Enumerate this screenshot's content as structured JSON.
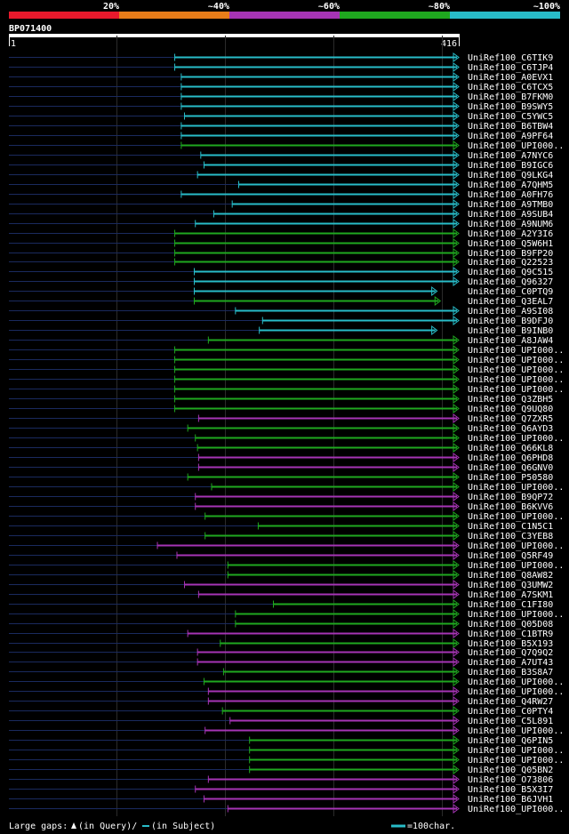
{
  "query_id": "BP071400",
  "query_start": "1",
  "query_end": "416",
  "legend": {
    "ticks": [
      "20%",
      "~40%",
      "~60%",
      "~80%",
      "~100%"
    ],
    "colors": [
      "#e8192c",
      "#e87d19",
      "#a634b5",
      "#1fa81f",
      "#28bcc8"
    ]
  },
  "footer": {
    "large_gaps_label": "Large gaps:",
    "query_gap_text": "(in Query)/",
    "subject_gap_text": "(in Subject)",
    "scale_text": "=100char."
  },
  "chart_data": {
    "type": "alignment-overview",
    "query_length": 416,
    "hits": [
      {
        "name": "UniRef100_C6TIK9",
        "start": 154,
        "end": 416,
        "identity_class": "~100%"
      },
      {
        "name": "UniRef100_C6TJP4",
        "start": 154,
        "end": 416,
        "identity_class": "~100%"
      },
      {
        "name": "UniRef100_A0EVX1",
        "start": 160,
        "end": 416,
        "identity_class": "~100%"
      },
      {
        "name": "UniRef100_C6TCX5",
        "start": 160,
        "end": 416,
        "identity_class": "~100%"
      },
      {
        "name": "UniRef100_B7FKM0",
        "start": 160,
        "end": 416,
        "identity_class": "~100%"
      },
      {
        "name": "UniRef100_B9SWY5",
        "start": 160,
        "end": 416,
        "identity_class": "~100%"
      },
      {
        "name": "UniRef100_C5YWC5",
        "start": 163,
        "end": 416,
        "identity_class": "~100%"
      },
      {
        "name": "UniRef100_B6TBW4",
        "start": 160,
        "end": 416,
        "identity_class": "~100%"
      },
      {
        "name": "UniRef100_A9PF64",
        "start": 160,
        "end": 416,
        "identity_class": "~100%"
      },
      {
        "name": "UniRef100_UPI000..",
        "start": 160,
        "end": 416,
        "identity_class": "~80%"
      },
      {
        "name": "UniRef100_A7NYC6",
        "start": 178,
        "end": 416,
        "identity_class": "~100%"
      },
      {
        "name": "UniRef100_B9IGC6",
        "start": 181,
        "end": 416,
        "identity_class": "~100%"
      },
      {
        "name": "UniRef100_Q9LKG4",
        "start": 175,
        "end": 416,
        "identity_class": "~100%"
      },
      {
        "name": "UniRef100_A7QHM5",
        "start": 213,
        "end": 416,
        "identity_class": "~100%"
      },
      {
        "name": "UniRef100_A0FH76",
        "start": 160,
        "end": 416,
        "identity_class": "~100%"
      },
      {
        "name": "UniRef100_A9TMB0",
        "start": 207,
        "end": 416,
        "identity_class": "~100%"
      },
      {
        "name": "UniRef100_A9SUB4",
        "start": 190,
        "end": 416,
        "identity_class": "~100%"
      },
      {
        "name": "UniRef100_A9NUM6",
        "start": 173,
        "end": 416,
        "identity_class": "~100%"
      },
      {
        "name": "UniRef100_A2Y3I6",
        "start": 154,
        "end": 416,
        "identity_class": "~80%"
      },
      {
        "name": "UniRef100_Q5W6H1",
        "start": 154,
        "end": 416,
        "identity_class": "~80%"
      },
      {
        "name": "UniRef100_B9FP20",
        "start": 154,
        "end": 416,
        "identity_class": "~80%"
      },
      {
        "name": "UniRef100_Q22523",
        "start": 154,
        "end": 416,
        "identity_class": "~80%"
      },
      {
        "name": "UniRef100_Q9C515",
        "start": 172,
        "end": 416,
        "identity_class": "~100%"
      },
      {
        "name": "UniRef100_Q96327",
        "start": 172,
        "end": 416,
        "identity_class": "~100%"
      },
      {
        "name": "UniRef100_C0PTQ9",
        "start": 172,
        "end": 396,
        "identity_class": "~100%"
      },
      {
        "name": "UniRef100_Q3EAL7",
        "start": 172,
        "end": 399,
        "identity_class": "~80%"
      },
      {
        "name": "UniRef100_A9SI08",
        "start": 210,
        "end": 416,
        "identity_class": "~100%"
      },
      {
        "name": "UniRef100_B9DFJ0",
        "start": 235,
        "end": 416,
        "identity_class": "~100%"
      },
      {
        "name": "UniRef100_B9INB0",
        "start": 232,
        "end": 396,
        "identity_class": "~100%"
      },
      {
        "name": "UniRef100_A8JAW4",
        "start": 185,
        "end": 416,
        "identity_class": "~80%"
      },
      {
        "name": "UniRef100_UPI000..",
        "start": 154,
        "end": 416,
        "identity_class": "~80%"
      },
      {
        "name": "UniRef100_UPI000..",
        "start": 154,
        "end": 416,
        "identity_class": "~80%"
      },
      {
        "name": "UniRef100_UPI000..",
        "start": 154,
        "end": 416,
        "identity_class": "~80%"
      },
      {
        "name": "UniRef100_UPI000..",
        "start": 154,
        "end": 416,
        "identity_class": "~80%"
      },
      {
        "name": "UniRef100_UPI000..",
        "start": 154,
        "end": 416,
        "identity_class": "~80%"
      },
      {
        "name": "UniRef100_Q3ZBH5",
        "start": 154,
        "end": 416,
        "identity_class": "~80%"
      },
      {
        "name": "UniRef100_Q9UQ80",
        "start": 154,
        "end": 416,
        "identity_class": "~80%"
      },
      {
        "name": "UniRef100_Q7ZXR5",
        "start": 176,
        "end": 416,
        "identity_class": "~60%"
      },
      {
        "name": "UniRef100_Q6AYD3",
        "start": 166,
        "end": 416,
        "identity_class": "~80%"
      },
      {
        "name": "UniRef100_UPI000..",
        "start": 173,
        "end": 416,
        "identity_class": "~80%"
      },
      {
        "name": "UniRef100_Q66KL8",
        "start": 175,
        "end": 416,
        "identity_class": "~80%"
      },
      {
        "name": "UniRef100_Q6PHD8",
        "start": 176,
        "end": 416,
        "identity_class": "~60%"
      },
      {
        "name": "UniRef100_Q6GNV0",
        "start": 176,
        "end": 416,
        "identity_class": "~60%"
      },
      {
        "name": "UniRef100_P50580",
        "start": 166,
        "end": 416,
        "identity_class": "~80%"
      },
      {
        "name": "UniRef100_UPI000..",
        "start": 188,
        "end": 416,
        "identity_class": "~80%"
      },
      {
        "name": "UniRef100_B9QP72",
        "start": 173,
        "end": 416,
        "identity_class": "~60%"
      },
      {
        "name": "UniRef100_B6KVV6",
        "start": 173,
        "end": 416,
        "identity_class": "~60%"
      },
      {
        "name": "UniRef100_UPI000..",
        "start": 182,
        "end": 416,
        "identity_class": "~80%"
      },
      {
        "name": "UniRef100_C1N5C1",
        "start": 231,
        "end": 416,
        "identity_class": "~80%"
      },
      {
        "name": "UniRef100_C3YEB8",
        "start": 182,
        "end": 416,
        "identity_class": "~80%"
      },
      {
        "name": "UniRef100_UPI000..",
        "start": 138,
        "end": 416,
        "identity_class": "~60%"
      },
      {
        "name": "UniRef100_Q5RF49",
        "start": 156,
        "end": 416,
        "identity_class": "~60%"
      },
      {
        "name": "UniRef100_UPI000..",
        "start": 203,
        "end": 416,
        "identity_class": "~80%"
      },
      {
        "name": "UniRef100_Q8AW82",
        "start": 203,
        "end": 416,
        "identity_class": "~80%"
      },
      {
        "name": "UniRef100_Q3UMW2",
        "start": 163,
        "end": 416,
        "identity_class": "~60%"
      },
      {
        "name": "UniRef100_A7SKM1",
        "start": 176,
        "end": 416,
        "identity_class": "~60%"
      },
      {
        "name": "UniRef100_C1FI80",
        "start": 245,
        "end": 416,
        "identity_class": "~80%"
      },
      {
        "name": "UniRef100_UPI000..",
        "start": 210,
        "end": 416,
        "identity_class": "~80%"
      },
      {
        "name": "UniRef100_Q05D08",
        "start": 210,
        "end": 416,
        "identity_class": "~80%"
      },
      {
        "name": "UniRef100_C1BTR9",
        "start": 166,
        "end": 416,
        "identity_class": "~60%"
      },
      {
        "name": "UniRef100_B5X193",
        "start": 196,
        "end": 416,
        "identity_class": "~80%"
      },
      {
        "name": "UniRef100_Q7Q9Q2",
        "start": 175,
        "end": 416,
        "identity_class": "~60%"
      },
      {
        "name": "UniRef100_A7UT43",
        "start": 175,
        "end": 416,
        "identity_class": "~60%"
      },
      {
        "name": "UniRef100_B3S8A7",
        "start": 199,
        "end": 416,
        "identity_class": "~80%"
      },
      {
        "name": "UniRef100_UPI000..",
        "start": 181,
        "end": 416,
        "identity_class": "~80%"
      },
      {
        "name": "UniRef100_UPI000..",
        "start": 185,
        "end": 416,
        "identity_class": "~60%"
      },
      {
        "name": "UniRef100_Q4RW27",
        "start": 185,
        "end": 416,
        "identity_class": "~60%"
      },
      {
        "name": "UniRef100_C0PTY4",
        "start": 198,
        "end": 416,
        "identity_class": "~80%"
      },
      {
        "name": "UniRef100_C5L891",
        "start": 205,
        "end": 416,
        "identity_class": "~60%"
      },
      {
        "name": "UniRef100_UPI000..",
        "start": 182,
        "end": 416,
        "identity_class": "~60%"
      },
      {
        "name": "UniRef100_Q6PIN5",
        "start": 223,
        "end": 416,
        "identity_class": "~80%"
      },
      {
        "name": "UniRef100_UPI000..",
        "start": 223,
        "end": 416,
        "identity_class": "~80%"
      },
      {
        "name": "UniRef100_UPI000..",
        "start": 223,
        "end": 416,
        "identity_class": "~80%"
      },
      {
        "name": "UniRef100_Q05BN2",
        "start": 223,
        "end": 416,
        "identity_class": "~80%"
      },
      {
        "name": "UniRef100_O73806",
        "start": 185,
        "end": 416,
        "identity_class": "~60%"
      },
      {
        "name": "UniRef100_B5X3I7",
        "start": 173,
        "end": 416,
        "identity_class": "~60%"
      },
      {
        "name": "UniRef100_B6JVH1",
        "start": 181,
        "end": 416,
        "identity_class": "~60%"
      },
      {
        "name": "UniRef100_UPI000..",
        "start": 203,
        "end": 416,
        "identity_class": "~60%"
      }
    ]
  }
}
